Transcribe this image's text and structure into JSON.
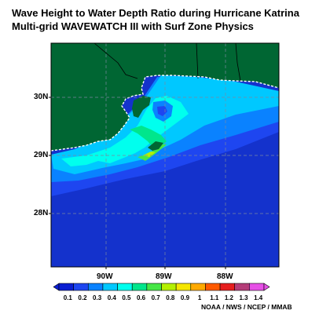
{
  "header": {
    "title_line1": "Wave Height to Water Depth Ratio during Hurricane Katrina",
    "title_line2": "Multi-grid WAVEWATCH III with Surf Zone Physics"
  },
  "map": {
    "lat_labels": [
      "30N",
      "29N",
      "28N"
    ],
    "lon_labels": [
      "90W",
      "89W",
      "88W"
    ],
    "land_color": "#006633",
    "deep_water_color": "#1432cc",
    "gridline_color": "#7a88a0"
  },
  "colorbar": {
    "labels": [
      "0.1",
      "0.2",
      "0.3",
      "0.4",
      "0.5",
      "0.6",
      "0.7",
      "0.8",
      "0.9",
      "1",
      "1.1",
      "1.2",
      "1.3",
      "1.4"
    ],
    "colors": [
      "#0a1ed2",
      "#1e46f0",
      "#0a82ff",
      "#00c8ff",
      "#00ffee",
      "#00e68c",
      "#46e646",
      "#b4f000",
      "#f5e600",
      "#ffaa00",
      "#ff5a00",
      "#e61e1e",
      "#b43c78",
      "#e650e6"
    ]
  },
  "credit": "NOAA / NWS / NCEP / MMAB"
}
